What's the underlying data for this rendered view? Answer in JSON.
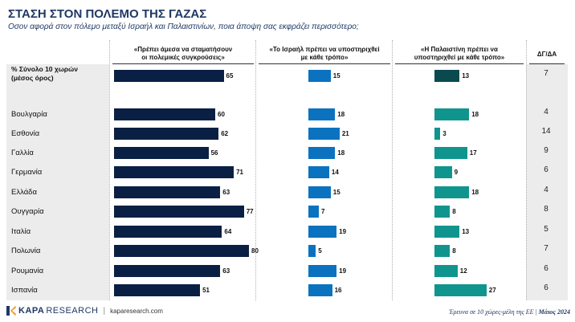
{
  "title": "ΣΤΑΣΗ ΣΤΟΝ ΠΟΛΕΜΟ ΤΗΣ ΓΑΖΑΣ",
  "subtitle": "Οσον αφορά στον πόλεμο μεταξύ Ισραήλ και Παλαιστινίων, ποια άποψη σας εκφράζει περισσότερο;",
  "colors": {
    "series1": "#0a1f44",
    "series2": "#0b72c0",
    "series3": "#10958e",
    "series3_total": "#0a4a4f",
    "title": "#1f3864"
  },
  "chart_data": {
    "type": "bar",
    "categories": [
      "% Σύνολο 10 χωρών (μέσος όρος)",
      "Βουλγαρία",
      "Εσθονία",
      "Γαλλία",
      "Γερμανία",
      "Ελλάδα",
      "Ουγγαρία",
      "Ιταλία",
      "Πολωνία",
      "Ρουμανία",
      "Ισπανία"
    ],
    "category_lines": [
      [
        "% Σύνολο 10 χωρών",
        "(μέσος όρος)"
      ],
      [
        "Βουλγαρία"
      ],
      [
        "Εσθονία"
      ],
      [
        "Γαλλία"
      ],
      [
        "Γερμανία"
      ],
      [
        "Ελλάδα"
      ],
      [
        "Ουγγαρία"
      ],
      [
        "Ιταλία"
      ],
      [
        "Πολωνία"
      ],
      [
        "Ρουμανία"
      ],
      [
        "Ισπανία"
      ]
    ],
    "series": [
      {
        "name": "«Πρέπει άμεσα να σταματήσουν οι πολεμικές συγκρούσεις»",
        "header_lines": [
          "«Πρέπει άμεσα να σταματήσουν",
          "οι πολεμικές συγκρούσεις»"
        ],
        "values": [
          65,
          60,
          62,
          56,
          71,
          63,
          77,
          64,
          80,
          63,
          51
        ]
      },
      {
        "name": "«Το Ισραήλ πρέπει να υποστηριχθεί με κάθε τρόπο»",
        "header_lines": [
          "«Το Ισραήλ πρέπει να υποστηριχθεί",
          "με κάθε τρόπο»"
        ],
        "values": [
          15,
          18,
          21,
          18,
          14,
          15,
          7,
          19,
          5,
          19,
          16
        ]
      },
      {
        "name": "«Η Παλαιστίνη πρέπει να υποστηριχθεί με κάθε τρόπο»",
        "header_lines": [
          "«Η Παλαιστίνη πρέπει να",
          "υποστηριχθεί με κάθε τρόπο»"
        ],
        "values": [
          13,
          18,
          3,
          17,
          9,
          18,
          8,
          13,
          8,
          12,
          27
        ]
      }
    ],
    "dk_header": "ΔΓ/ΔΑ",
    "dk_values": [
      7,
      4,
      14,
      9,
      6,
      4,
      8,
      5,
      7,
      6,
      6
    ],
    "value_unit": "%"
  },
  "footer": {
    "brand_bold": "KAPA",
    "brand_light": "RESEARCH",
    "separator": "|",
    "site": "kaparesearch.com",
    "note_prefix": "Έρευνα σε 10 χώρες-μέλη της ΕΕ | ",
    "note_date": "Μάιος 2024"
  }
}
